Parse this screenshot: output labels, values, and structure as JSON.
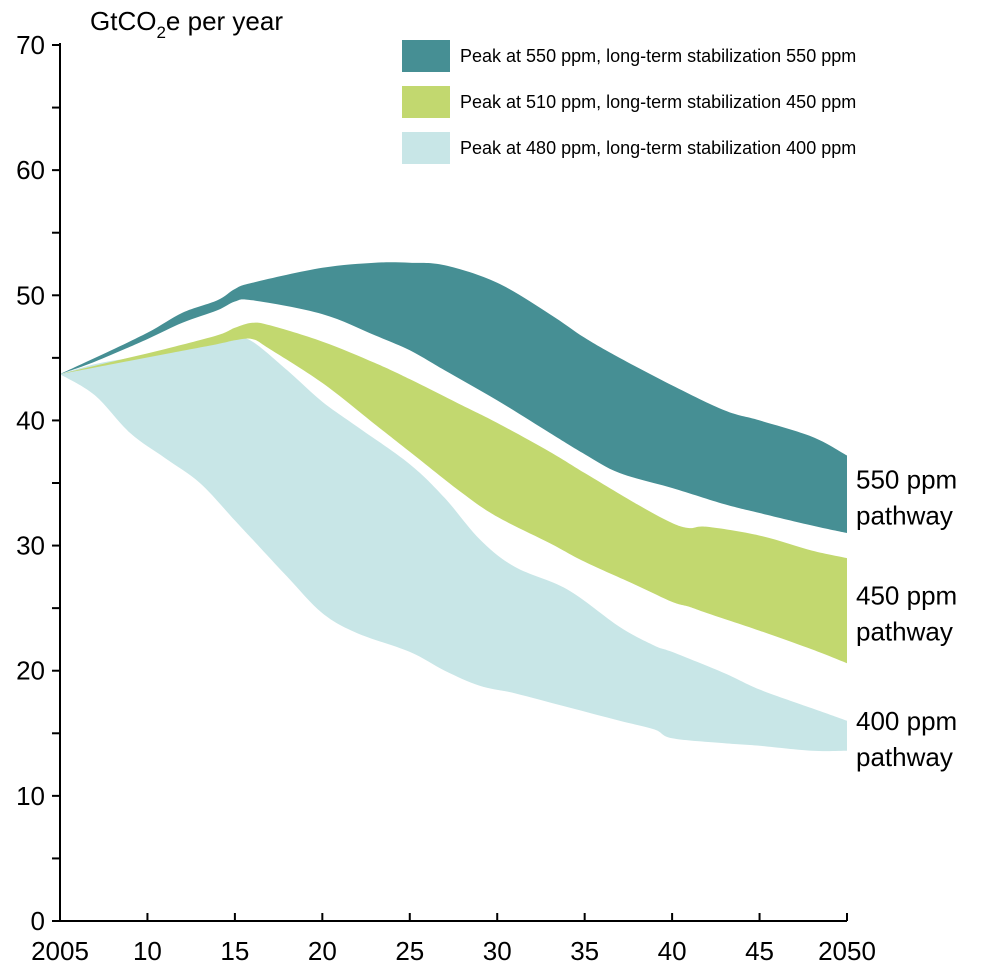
{
  "chart_data": {
    "type": "area",
    "ylabel_main": "GtCO",
    "ylabel_sub": "2",
    "ylabel_rest": "e per year",
    "xlim": [
      2005,
      2050
    ],
    "ylim": [
      0,
      70
    ],
    "x_tick_values": [
      2005,
      2010,
      2015,
      2020,
      2025,
      2030,
      2035,
      2040,
      2045,
      2050
    ],
    "x_tick_labels": [
      "2005",
      "10",
      "15",
      "20",
      "25",
      "30",
      "35",
      "40",
      "45",
      "2050"
    ],
    "y_tick_values": [
      0,
      10,
      20,
      30,
      40,
      50,
      60,
      70
    ],
    "y_tick_labels": [
      "0",
      "10",
      "20",
      "30",
      "40",
      "50",
      "60",
      "70"
    ],
    "grid": false,
    "legend_position": "top-right",
    "series": [
      {
        "name": "Peak at 550 ppm, long-term stabilization 550 ppm",
        "pathway_label": [
          "550 ppm",
          "pathway"
        ],
        "color": "#468f94",
        "x": [
          2005,
          2007,
          2010,
          2012,
          2014,
          2015,
          2016,
          2020,
          2023,
          2025,
          2027,
          2030,
          2033,
          2035,
          2037,
          2040,
          2043,
          2045,
          2048,
          2050
        ],
        "upper": [
          43.7,
          45.0,
          47.0,
          48.6,
          49.6,
          50.5,
          51.0,
          52.2,
          52.6,
          52.6,
          52.4,
          51.0,
          48.5,
          46.6,
          45.0,
          42.8,
          40.8,
          40.0,
          38.7,
          37.2
        ],
        "lower": [
          43.7,
          44.7,
          46.5,
          47.8,
          48.8,
          49.5,
          49.6,
          48.5,
          46.8,
          45.6,
          44.0,
          41.6,
          39.0,
          37.3,
          35.8,
          34.6,
          33.3,
          32.6,
          31.6,
          31.0
        ]
      },
      {
        "name": "Peak at 510 ppm, long-term stabilization 450 ppm",
        "pathway_label": [
          "450 ppm",
          "pathway"
        ],
        "color": "#c2d86f",
        "x": [
          2005,
          2008,
          2011,
          2014,
          2015,
          2016,
          2017,
          2020,
          2023,
          2025,
          2028,
          2030,
          2033,
          2035,
          2038,
          2040,
          2041,
          2042,
          2045,
          2048,
          2050
        ],
        "upper": [
          43.7,
          44.7,
          45.7,
          46.8,
          47.4,
          47.8,
          47.6,
          46.3,
          44.6,
          43.3,
          41.2,
          39.8,
          37.5,
          35.8,
          33.3,
          31.8,
          31.4,
          31.5,
          30.8,
          29.6,
          29.0
        ],
        "lower": [
          43.7,
          44.5,
          45.3,
          46.1,
          46.4,
          46.5,
          45.7,
          43.0,
          39.7,
          37.5,
          34.2,
          32.3,
          30.2,
          28.7,
          26.8,
          25.5,
          25.1,
          24.6,
          23.2,
          21.7,
          20.6
        ]
      },
      {
        "name": "Peak at 480 ppm, long-term stabilization 400 ppm",
        "pathway_label": [
          "400 ppm",
          "pathway"
        ],
        "color": "#c8e6e7",
        "x": [
          2005,
          2007,
          2009,
          2011,
          2013,
          2015,
          2016,
          2018,
          2020,
          2022,
          2025,
          2027,
          2029,
          2031,
          2034,
          2037,
          2039,
          2040,
          2043,
          2045,
          2048,
          2050
        ],
        "upper": [
          43.7,
          44.5,
          45.0,
          45.5,
          46.0,
          46.5,
          46.3,
          44.0,
          41.5,
          39.5,
          36.5,
          33.8,
          30.5,
          28.3,
          26.5,
          23.5,
          22.0,
          21.5,
          19.8,
          18.5,
          17.0,
          16.0
        ],
        "lower": [
          43.7,
          42.0,
          39.0,
          37.0,
          35.0,
          32.0,
          30.5,
          27.5,
          24.6,
          23.0,
          21.5,
          20.0,
          18.8,
          18.2,
          17.1,
          16.0,
          15.3,
          14.6,
          14.2,
          14.0,
          13.6,
          13.6
        ]
      }
    ]
  }
}
